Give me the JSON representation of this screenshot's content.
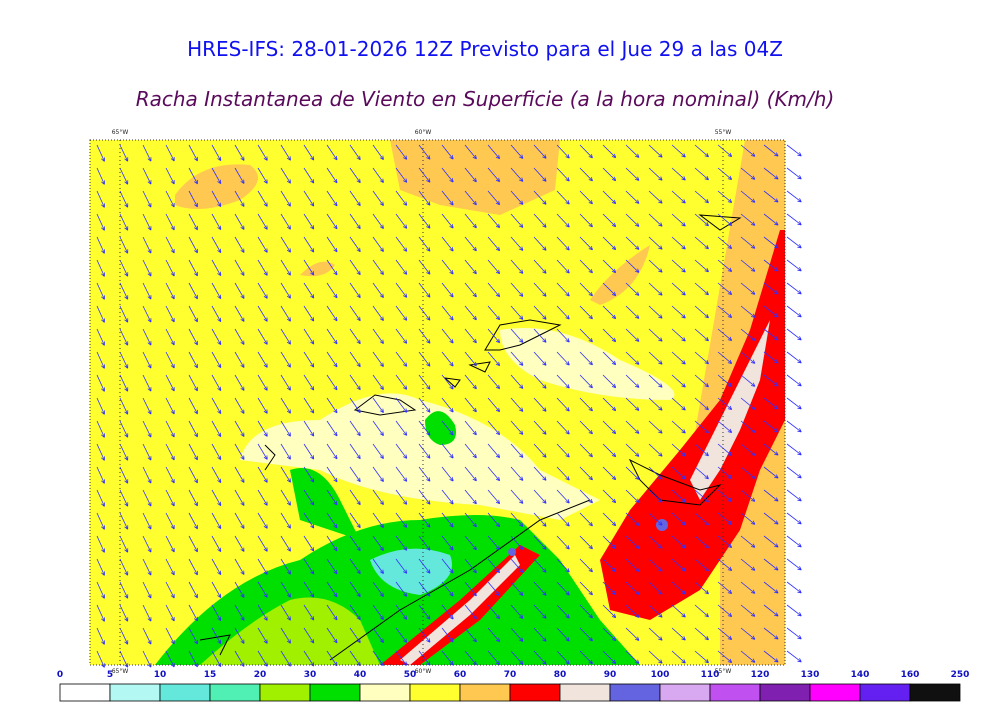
{
  "header": {
    "title": "HRES-IFS: 28-01-2026 12Z Previsto para el Jue 29 a las 04Z",
    "subtitle": "Racha Instantanea de Viento en Superficie (a la hora nominal) (Km/h)"
  },
  "map": {
    "lon_labels": [
      "65°W",
      "60°W",
      "55°W"
    ]
  },
  "colorbar": {
    "ticks": [
      0,
      5,
      10,
      15,
      20,
      30,
      40,
      50,
      60,
      70,
      80,
      90,
      100,
      110,
      120,
      130,
      140,
      160,
      250
    ],
    "colors": [
      "#ffffff",
      "#b4f8f4",
      "#64e8dc",
      "#50f0b4",
      "#a0f000",
      "#00e000",
      "#ffffc0",
      "#ffff30",
      "#ffc850",
      "#ff0000",
      "#f0e4dc",
      "#6464e0",
      "#d8a8f0",
      "#c050f0",
      "#8020b0",
      "#ff00ff",
      "#6420f0",
      "#101010"
    ]
  }
}
